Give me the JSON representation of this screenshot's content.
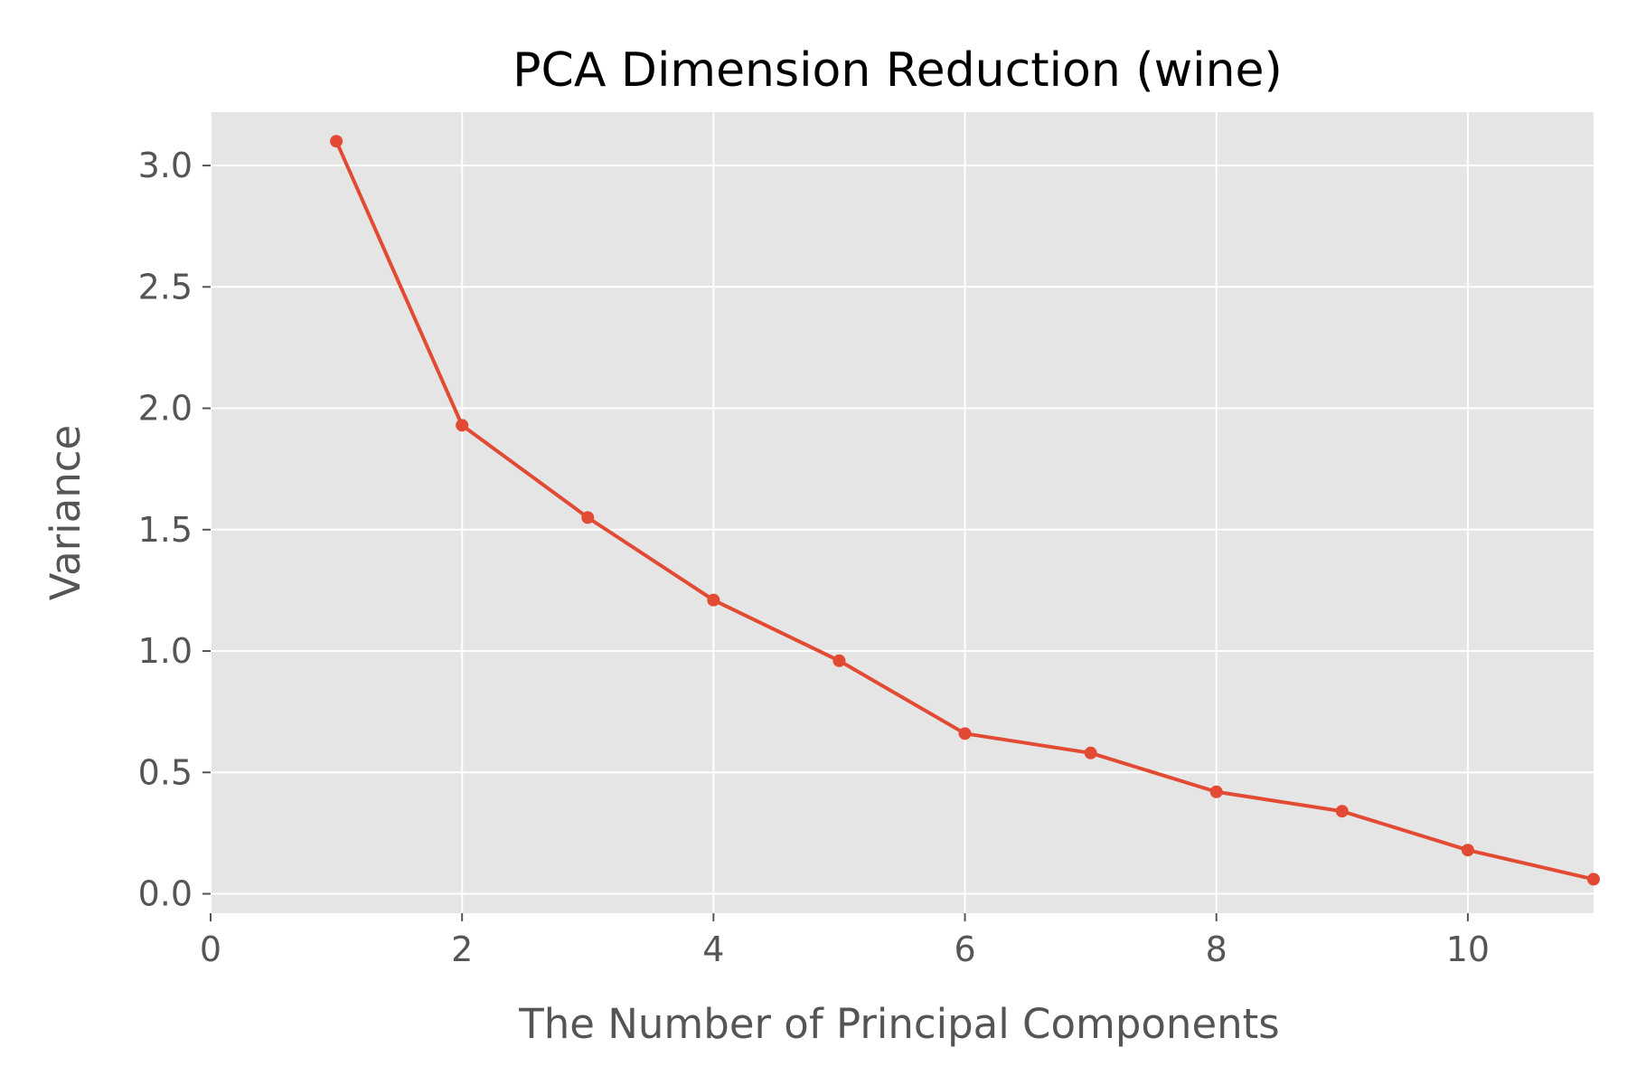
{
  "chart_data": {
    "type": "line",
    "title": "PCA Dimension Reduction (wine)",
    "xlabel": "The Number of Principal Components",
    "ylabel": "Variance",
    "xlim": [
      0,
      11
    ],
    "ylim": [
      -0.08,
      3.22
    ],
    "xticks": [
      0,
      2,
      4,
      6,
      8,
      10
    ],
    "xtick_labels": [
      "0",
      "2",
      "4",
      "6",
      "8",
      "10"
    ],
    "yticks": [
      0,
      0.5,
      1,
      1.5,
      2,
      2.5,
      3
    ],
    "ytick_labels": [
      "0.0",
      "0.5",
      "1.0",
      "1.5",
      "2.0",
      "2.5",
      "3.0"
    ],
    "grid": true,
    "style": "ggplot",
    "colors": {
      "background": "#E5E5E5",
      "grid": "#FFFFFF",
      "line": "#E24A33",
      "tick": "#555555"
    },
    "series": [
      {
        "x": [
          1,
          2,
          3,
          4,
          5,
          6,
          7,
          8,
          9,
          10,
          11
        ],
        "values": [
          3.1,
          1.93,
          1.55,
          1.21,
          0.96,
          0.66,
          0.58,
          0.42,
          0.34,
          0.18,
          0.06
        ]
      }
    ]
  }
}
